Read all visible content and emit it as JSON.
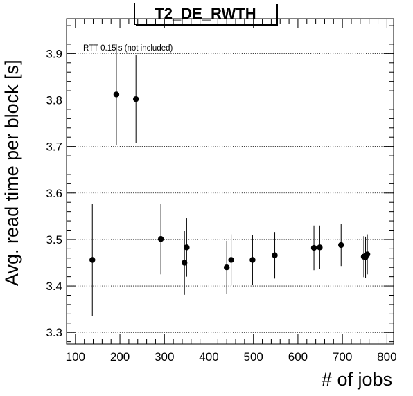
{
  "chart_data": {
    "type": "scatter",
    "title": "T2_DE_RWTH",
    "xlabel": "# of jobs",
    "ylabel": "Avg. read time per block [s]",
    "annotation": "RTT 0.15 s (not included)",
    "xlim": [
      80,
      815
    ],
    "ylim": [
      3.275,
      3.975
    ],
    "x_ticks": [
      100,
      200,
      300,
      400,
      500,
      600,
      700,
      800
    ],
    "y_ticks": [
      3.3,
      3.4,
      3.5,
      3.6,
      3.7,
      3.8,
      3.9
    ],
    "grid": "y-dotted",
    "series": [
      {
        "points": [
          {
            "x": 138,
            "y": 3.456,
            "err": 0.12
          },
          {
            "x": 192,
            "y": 3.812,
            "err": 0.108
          },
          {
            "x": 236,
            "y": 3.802,
            "err": 0.095
          },
          {
            "x": 292,
            "y": 3.501,
            "err": 0.076
          },
          {
            "x": 345,
            "y": 3.45,
            "err": 0.069
          },
          {
            "x": 350,
            "y": 3.483,
            "err": 0.063
          },
          {
            "x": 440,
            "y": 3.44,
            "err": 0.057
          },
          {
            "x": 450,
            "y": 3.456,
            "err": 0.055
          },
          {
            "x": 498,
            "y": 3.456,
            "err": 0.054
          },
          {
            "x": 548,
            "y": 3.466,
            "err": 0.05
          },
          {
            "x": 636,
            "y": 3.482,
            "err": 0.048
          },
          {
            "x": 649,
            "y": 3.483,
            "err": 0.047
          },
          {
            "x": 697,
            "y": 3.488,
            "err": 0.045
          },
          {
            "x": 748,
            "y": 3.463,
            "err": 0.044
          },
          {
            "x": 752,
            "y": 3.462,
            "err": 0.044
          },
          {
            "x": 756,
            "y": 3.468,
            "err": 0.043
          }
        ]
      }
    ]
  }
}
